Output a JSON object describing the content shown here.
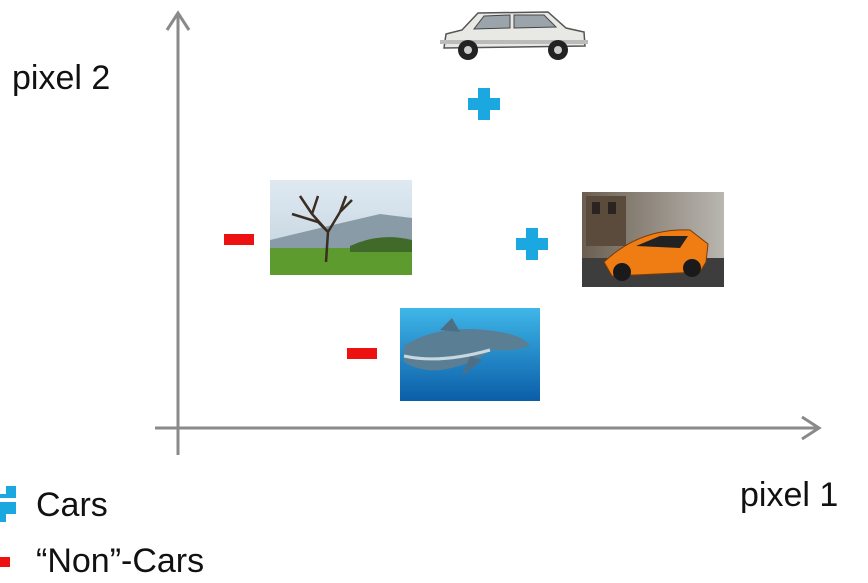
{
  "axes": {
    "x_label": "pixel 1",
    "y_label": "pixel 2"
  },
  "legend": [
    {
      "label": "Cars"
    },
    {
      "label": "“Non”-Cars"
    }
  ]
}
